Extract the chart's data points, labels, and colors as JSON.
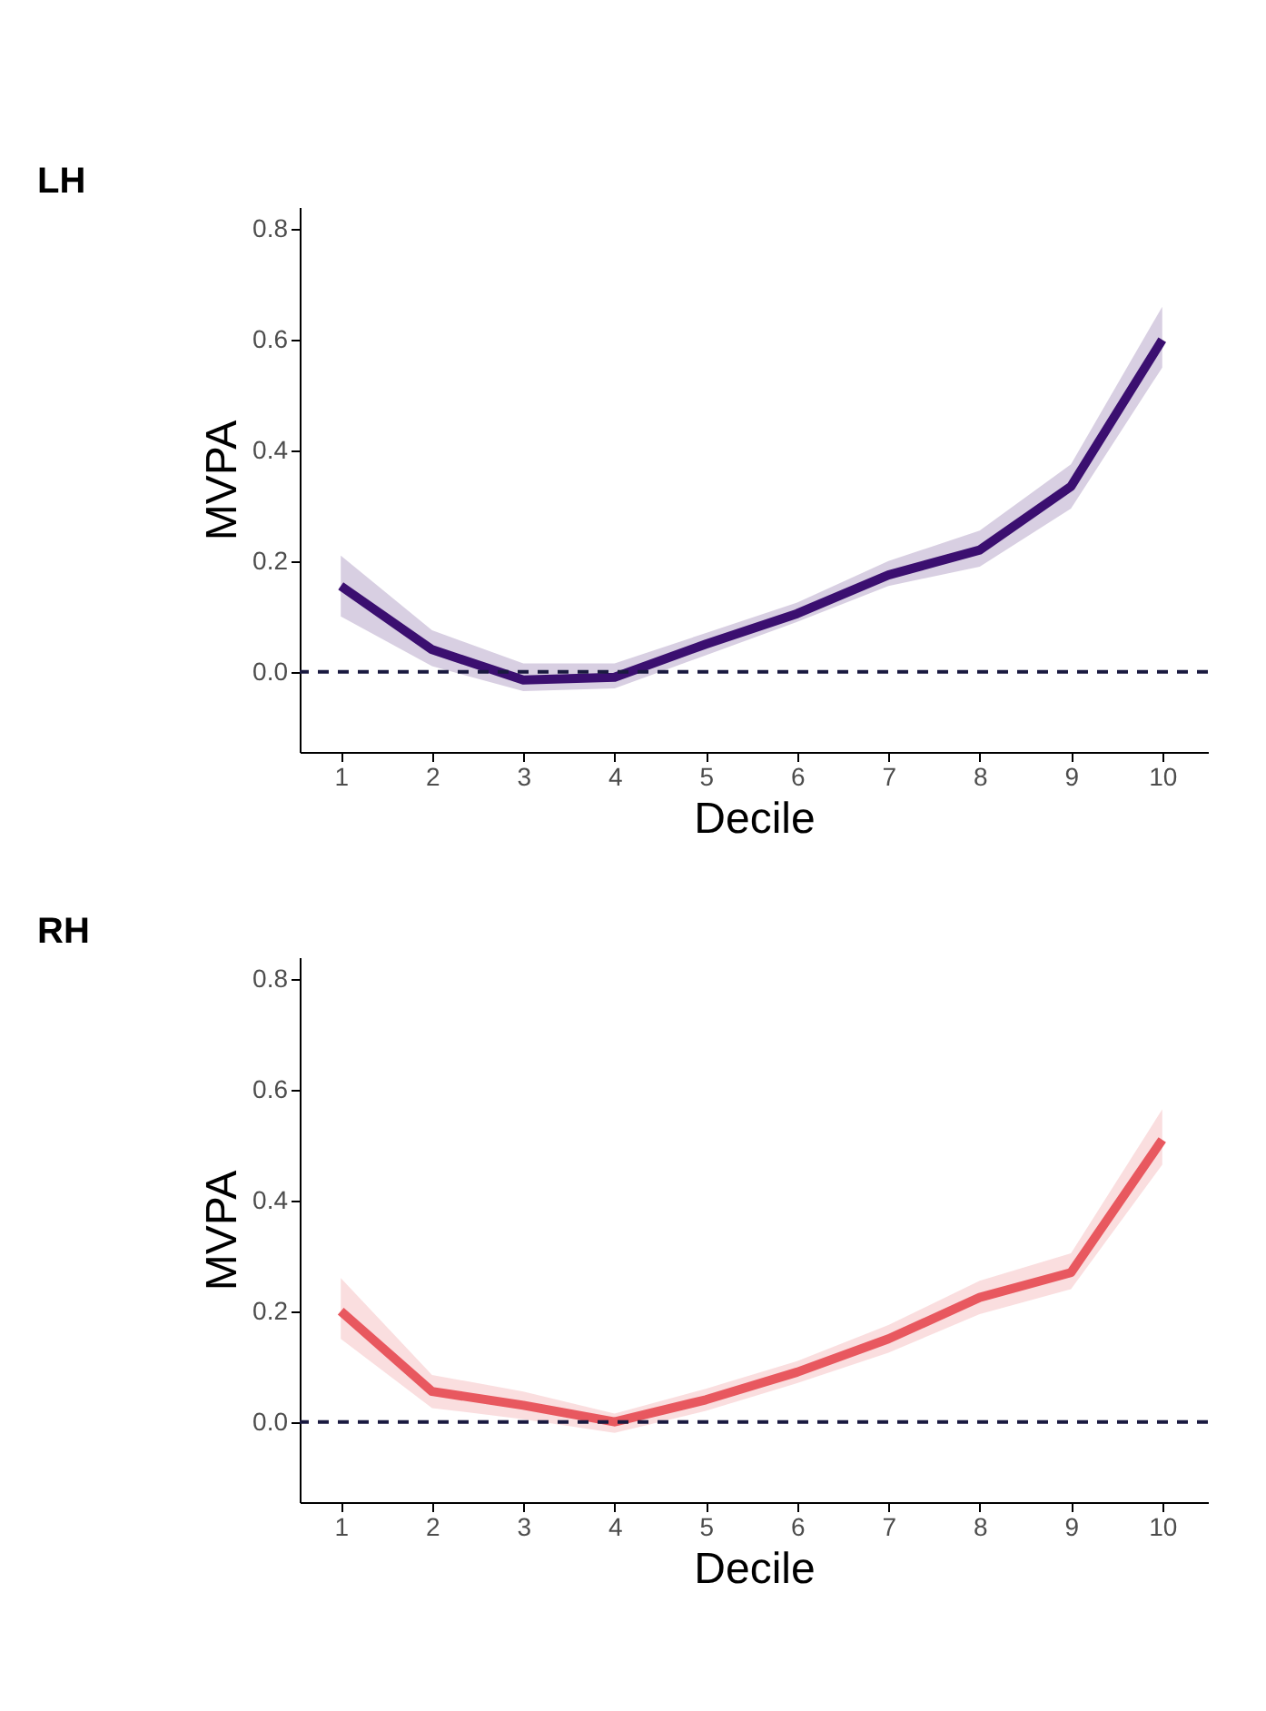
{
  "chart_data": [
    {
      "type": "line",
      "title": "LH",
      "xlabel": "Decile",
      "ylabel": "MVPA",
      "x": [
        1,
        2,
        3,
        4,
        5,
        6,
        7,
        8,
        9,
        10
      ],
      "xlim": [
        0.55,
        10.5
      ],
      "xticks": [
        1,
        2,
        3,
        4,
        5,
        6,
        7,
        8,
        9,
        10
      ],
      "ylim": [
        -0.145,
        0.84
      ],
      "yticks": [
        {
          "value": 0,
          "label": "0.0"
        },
        {
          "value": 0.2,
          "label": "0.2"
        },
        {
          "value": 0.4,
          "label": "0.4"
        },
        {
          "value": 0.6,
          "label": "0.6"
        },
        {
          "value": 0.8,
          "label": "0.8"
        }
      ],
      "grid": false,
      "series": [
        {
          "color": "#3b0f70",
          "values": [
            0.155,
            0.04,
            -0.015,
            -0.01,
            0.05,
            0.105,
            0.175,
            0.22,
            0.335,
            0.6
          ],
          "lower": [
            0.1,
            0.01,
            -0.035,
            -0.03,
            0.03,
            0.09,
            0.155,
            0.19,
            0.295,
            0.55
          ],
          "upper": [
            0.21,
            0.075,
            0.015,
            0.015,
            0.07,
            0.125,
            0.2,
            0.255,
            0.375,
            0.66
          ]
        }
      ],
      "ref_lines": [
        {
          "axis": "y",
          "value": 0,
          "color": "#1a1a40",
          "line_style": "dashed"
        }
      ]
    },
    {
      "type": "line",
      "title": "RH",
      "xlabel": "Decile",
      "ylabel": "MVPA",
      "x": [
        1,
        2,
        3,
        4,
        5,
        6,
        7,
        8,
        9,
        10
      ],
      "xlim": [
        0.55,
        10.5
      ],
      "xticks": [
        1,
        2,
        3,
        4,
        5,
        6,
        7,
        8,
        9,
        10
      ],
      "ylim": [
        -0.145,
        0.84
      ],
      "yticks": [
        {
          "value": 0,
          "label": "0.0"
        },
        {
          "value": 0.2,
          "label": "0.2"
        },
        {
          "value": 0.4,
          "label": "0.4"
        },
        {
          "value": 0.6,
          "label": "0.6"
        },
        {
          "value": 0.8,
          "label": "0.8"
        }
      ],
      "grid": false,
      "series": [
        {
          "color": "#e8585f",
          "values": [
            0.2,
            0.055,
            0.03,
            0.0,
            0.04,
            0.09,
            0.15,
            0.225,
            0.27,
            0.51
          ],
          "lower": [
            0.15,
            0.025,
            0.005,
            -0.02,
            0.02,
            0.07,
            0.125,
            0.195,
            0.24,
            0.465
          ],
          "upper": [
            0.26,
            0.085,
            0.055,
            0.015,
            0.06,
            0.11,
            0.175,
            0.255,
            0.305,
            0.565
          ]
        }
      ],
      "ref_lines": [
        {
          "axis": "y",
          "value": 0,
          "color": "#1a1a40",
          "line_style": "dashed"
        }
      ]
    }
  ]
}
